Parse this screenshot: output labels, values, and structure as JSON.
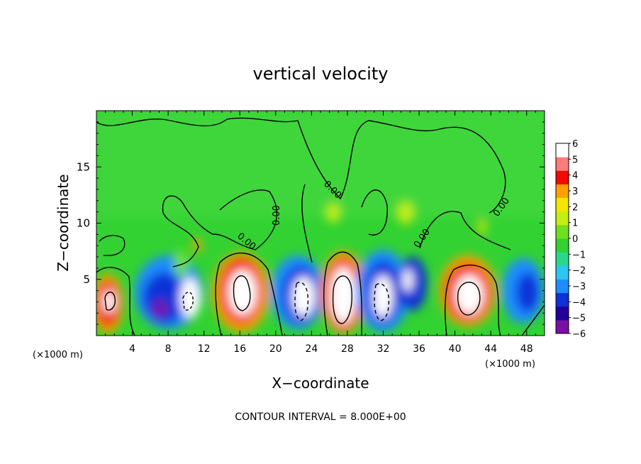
{
  "chart_data": {
    "type": "heatmap",
    "title": "vertical velocity",
    "xlabel": "X−coordinate",
    "ylabel": "Z−coordinate",
    "x_unit_left": "(×1000 m)",
    "x_unit_right": "(×1000 m)",
    "footer": "CONTOUR INTERVAL = 8.000E+00",
    "xlim": [
      0,
      50
    ],
    "ylim": [
      0,
      20
    ],
    "x_ticks": [
      4,
      8,
      12,
      16,
      20,
      24,
      28,
      32,
      36,
      40,
      44,
      48
    ],
    "x_tick_labels": [
      "4",
      "8",
      "12",
      "16",
      "20",
      "24",
      "28",
      "32",
      "36",
      "40",
      "44",
      "48"
    ],
    "y_ticks": [
      5,
      10,
      15
    ],
    "y_tick_labels": [
      "5",
      "10",
      "15"
    ],
    "contour_labels": [
      "0.00",
      "0.00",
      "0.00",
      "0.00",
      "0.00"
    ],
    "colorbar": {
      "min": -6,
      "max": 6,
      "tick_values": [
        6,
        5,
        4,
        3,
        2,
        1,
        0,
        -1,
        -2,
        -3,
        -4,
        -5,
        -6
      ],
      "tick_labels": [
        "6",
        "5",
        "4",
        "3",
        "2",
        "1",
        "0",
        "−1",
        "−2",
        "−3",
        "−4",
        "−5",
        "−6"
      ],
      "colors": [
        "#7a0fa6",
        "#23009a",
        "#1030d8",
        "#1e8cff",
        "#2dc6f0",
        "#2ad88c",
        "#32d232",
        "#6ee01e",
        "#c4ef14",
        "#f5e600",
        "#ffa000",
        "#f00a00",
        "#ff7a7a",
        "#ffffff"
      ]
    },
    "cells": [
      {
        "x": 1.2,
        "z": 2.8,
        "value": 5.5
      },
      {
        "x": 7.5,
        "z": 2.4,
        "value": -5.6
      },
      {
        "x": 10.5,
        "z": 3.2,
        "value": -5.3
      },
      {
        "x": 16,
        "z": 3.8,
        "value": 6.5
      },
      {
        "x": 22.5,
        "z": 3.5,
        "value": -6.0
      },
      {
        "x": 27.3,
        "z": 4.0,
        "value": 7.5
      },
      {
        "x": 31.5,
        "z": 3.5,
        "value": -6.0
      },
      {
        "x": 34.8,
        "z": 4.3,
        "value": -5.2
      },
      {
        "x": 41.2,
        "z": 4.0,
        "value": 6.0
      },
      {
        "x": 47.5,
        "z": 3.8,
        "value": -4.5
      }
    ]
  }
}
